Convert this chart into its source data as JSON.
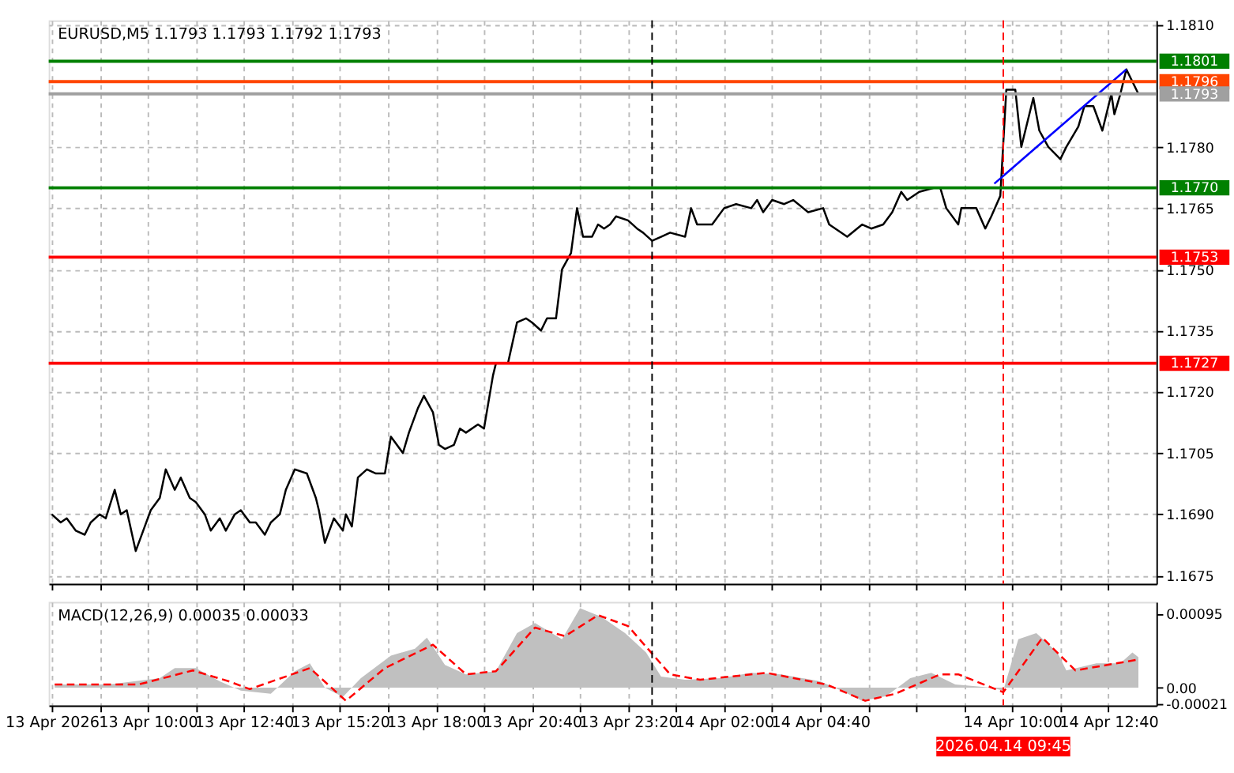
{
  "chart_data": [
    {
      "type": "line",
      "title": "EURUSD,M5  1.1793 1.1793 1.1792 1.1793",
      "tick_labels": "y",
      "grid": true,
      "xlim": [
        "2026-04-13T07:15",
        "2026-04-14T14:00"
      ],
      "xticks": [
        {
          "value": "2026-04-13T07:20",
          "label": null
        },
        {
          "value": "2026-04-13T08:40",
          "label": null
        },
        {
          "value": "2026-04-13T10:00",
          "label": null
        },
        {
          "value": "2026-04-13T11:20",
          "label": null
        },
        {
          "value": "2026-04-13T12:40",
          "label": null
        },
        {
          "value": "2026-04-13T14:00",
          "label": null
        },
        {
          "value": "2026-04-13T15:20",
          "label": null
        },
        {
          "value": "2026-04-13T16:40",
          "label": null
        },
        {
          "value": "2026-04-13T18:00",
          "label": null
        },
        {
          "value": "2026-04-13T19:20",
          "label": null
        },
        {
          "value": "2026-04-13T20:40",
          "label": null
        },
        {
          "value": "2026-04-13T22:00",
          "label": null
        },
        {
          "value": "2026-04-13T23:20",
          "label": null
        },
        {
          "value": "2026-04-14T00:40",
          "label": null
        },
        {
          "value": "2026-04-14T02:00",
          "label": null
        },
        {
          "value": "2026-04-14T03:20",
          "label": null
        },
        {
          "value": "2026-04-14T04:40",
          "label": null
        },
        {
          "value": "2026-04-14T06:00",
          "label": null
        },
        {
          "value": "2026-04-14T07:20",
          "label": null
        },
        {
          "value": "2026-04-14T08:40",
          "label": null
        },
        {
          "value": "2026-04-14T10:00",
          "label": null
        },
        {
          "value": "2026-04-14T11:20",
          "label": null
        },
        {
          "value": "2026-04-14T12:40",
          "label": null
        }
      ],
      "ylim": [
        1.1673,
        1.1811
      ],
      "yticks": [
        {
          "value": 1.181,
          "label": "1.1810"
        },
        {
          "value": 1.178,
          "label": "1.1780"
        },
        {
          "value": 1.1765,
          "label": "1.1765"
        },
        {
          "value": 1.175,
          "label": "1.1750"
        },
        {
          "value": 1.1735,
          "label": "1.1735"
        },
        {
          "value": 1.172,
          "label": "1.1720"
        },
        {
          "value": 1.1705,
          "label": "1.1705"
        },
        {
          "value": 1.169,
          "label": "1.1690"
        },
        {
          "value": 1.1675,
          "label": "1.1675"
        }
      ],
      "series": [
        {
          "color": "#000000",
          "x": [
            "2026-04-13T07:20",
            "2026-04-13T07:35",
            "2026-04-13T07:45",
            "2026-04-13T08:00",
            "2026-04-13T08:15",
            "2026-04-13T08:25",
            "2026-04-13T08:40",
            "2026-04-13T08:50",
            "2026-04-13T09:05",
            "2026-04-13T09:15",
            "2026-04-13T09:25",
            "2026-04-13T09:40",
            "2026-04-13T09:55",
            "2026-04-13T10:05",
            "2026-04-13T10:20",
            "2026-04-13T10:30",
            "2026-04-13T10:45",
            "2026-04-13T10:55",
            "2026-04-13T11:10",
            "2026-04-13T11:20",
            "2026-04-13T11:35",
            "2026-04-13T11:45",
            "2026-04-13T12:00",
            "2026-04-13T12:10",
            "2026-04-13T12:25",
            "2026-04-13T12:35",
            "2026-04-13T12:50",
            "2026-04-13T13:00",
            "2026-04-13T13:15",
            "2026-04-13T13:25",
            "2026-04-13T13:40",
            "2026-04-13T13:50",
            "2026-04-13T14:05",
            "2026-04-13T14:25",
            "2026-04-13T14:40",
            "2026-04-13T14:45",
            "2026-04-13T14:55",
            "2026-04-13T15:10",
            "2026-04-13T15:25",
            "2026-04-13T15:30",
            "2026-04-13T15:40",
            "2026-04-13T15:50",
            "2026-04-13T16:05",
            "2026-04-13T16:20",
            "2026-04-13T16:35",
            "2026-04-13T16:45",
            "2026-04-13T17:05",
            "2026-04-13T17:15",
            "2026-04-13T17:30",
            "2026-04-13T17:40",
            "2026-04-13T17:55",
            "2026-04-13T18:05",
            "2026-04-13T18:15",
            "2026-04-13T18:30",
            "2026-04-13T18:40",
            "2026-04-13T18:50",
            "2026-04-13T19:10",
            "2026-04-13T19:20",
            "2026-04-13T19:35",
            "2026-04-13T19:40",
            "2026-04-13T20:00",
            "2026-04-13T20:15",
            "2026-04-13T20:30",
            "2026-04-13T20:40",
            "2026-04-13T20:55",
            "2026-04-13T21:05",
            "2026-04-13T21:20",
            "2026-04-13T21:30",
            "2026-04-13T21:45",
            "2026-04-13T21:55",
            "2026-04-13T22:05",
            "2026-04-13T22:20",
            "2026-04-13T22:30",
            "2026-04-13T22:40",
            "2026-04-13T22:50",
            "2026-04-13T23:00",
            "2026-04-13T23:20",
            "2026-04-13T23:35",
            "2026-04-13T23:45",
            "2026-04-14T00:00",
            "2026-04-14T00:15",
            "2026-04-14T00:30",
            "2026-04-14T00:55",
            "2026-04-14T01:05",
            "2026-04-14T01:15",
            "2026-04-14T01:40",
            "2026-04-14T02:00",
            "2026-04-14T02:20",
            "2026-04-14T02:45",
            "2026-04-14T02:55",
            "2026-04-14T03:05",
            "2026-04-14T03:20",
            "2026-04-14T03:40",
            "2026-04-14T03:55",
            "2026-04-14T04:20",
            "2026-04-14T04:45",
            "2026-04-14T04:55",
            "2026-04-14T05:25",
            "2026-04-14T05:50",
            "2026-04-14T06:05",
            "2026-04-14T06:25",
            "2026-04-14T06:40",
            "2026-04-14T06:55",
            "2026-04-14T07:05",
            "2026-04-14T07:25",
            "2026-04-14T07:50",
            "2026-04-14T08:00",
            "2026-04-14T08:10",
            "2026-04-14T08:30",
            "2026-04-14T08:35",
            "2026-04-14T09:00",
            "2026-04-14T09:15",
            "2026-04-14T09:25",
            "2026-04-14T09:40",
            "2026-04-14T09:50",
            "2026-04-14T10:05",
            "2026-04-14T10:15",
            "2026-04-14T10:35",
            "2026-04-14T10:45",
            "2026-04-14T11:00",
            "2026-04-14T11:20",
            "2026-04-14T11:30",
            "2026-04-14T11:50",
            "2026-04-14T12:00",
            "2026-04-14T12:15",
            "2026-04-14T12:30",
            "2026-04-14T12:45",
            "2026-04-14T12:50",
            "2026-04-14T13:00",
            "2026-04-14T13:10",
            "2026-04-14T13:20",
            "2026-04-14T13:30"
          ],
          "values": [
            1.169,
            1.1688,
            1.1689,
            1.1686,
            1.1685,
            1.1688,
            1.169,
            1.1689,
            1.1696,
            1.169,
            1.1691,
            1.1681,
            1.1687,
            1.1691,
            1.1694,
            1.1701,
            1.1696,
            1.1699,
            1.1694,
            1.1693,
            1.169,
            1.1686,
            1.1689,
            1.1686,
            1.169,
            1.1691,
            1.1688,
            1.1688,
            1.1685,
            1.1688,
            1.169,
            1.1696,
            1.1701,
            1.17,
            1.1694,
            1.1691,
            1.1683,
            1.1689,
            1.1686,
            1.169,
            1.1687,
            1.1699,
            1.1701,
            1.17,
            1.17,
            1.1709,
            1.1705,
            1.171,
            1.1716,
            1.1719,
            1.1715,
            1.1707,
            1.1706,
            1.1707,
            1.1711,
            1.171,
            1.1712,
            1.1711,
            1.1724,
            1.1727,
            1.1727,
            1.1737,
            1.1738,
            1.1737,
            1.1735,
            1.1738,
            1.1738,
            1.175,
            1.1754,
            1.1765,
            1.1758,
            1.1758,
            1.1761,
            1.176,
            1.1761,
            1.1763,
            1.1762,
            1.176,
            1.1759,
            1.1757,
            1.1758,
            1.1759,
            1.1758,
            1.1765,
            1.1761,
            1.1761,
            1.1765,
            1.1766,
            1.1765,
            1.1767,
            1.1764,
            1.1767,
            1.1766,
            1.1767,
            1.1764,
            1.1765,
            1.1761,
            1.1758,
            1.1761,
            1.176,
            1.1761,
            1.1764,
            1.1769,
            1.1767,
            1.1769,
            1.177,
            1.177,
            1.1765,
            1.1761,
            1.1765,
            1.1765,
            1.176,
            1.1763,
            1.1768,
            1.1794,
            1.1794,
            1.178,
            1.1792,
            1.1784,
            1.178,
            1.1777,
            1.178,
            1.1785,
            1.179,
            1.179,
            1.1784,
            1.1793,
            1.1788,
            1.1793,
            1.1799,
            1.1796,
            1.1793
          ]
        },
        {
          "color": "#0000ff",
          "x": [
            "2026-04-14T09:30",
            "2026-04-14T13:10"
          ],
          "values": [
            1.1771,
            1.1799
          ]
        }
      ],
      "ref_lines": [
        {
          "axis": "y",
          "value": 1.1801,
          "label": "1.1801",
          "color": "#008000"
        },
        {
          "axis": "y",
          "value": 1.1796,
          "label": "1.1796",
          "color": "#ff4500"
        },
        {
          "axis": "y",
          "value": 1.1793,
          "label": "1.1793",
          "color": "#a0a0a0"
        },
        {
          "axis": "y",
          "value": 1.177,
          "label": "1.1770",
          "color": "#008000"
        },
        {
          "axis": "y",
          "value": 1.1753,
          "label": "1.1753",
          "color": "#ff0000"
        },
        {
          "axis": "y",
          "value": 1.1727,
          "label": "1.1727",
          "color": "#ff0000"
        },
        {
          "axis": "x",
          "value": "2026-04-14T00:00",
          "color": "#000000",
          "line_style": "dashed"
        },
        {
          "axis": "x",
          "value": "2026-04-14T09:45",
          "color": "#ff0000",
          "line_style": "dashed"
        }
      ]
    },
    {
      "type": "area",
      "annotations": [
        "MACD(12,26,9) 0.00035 0.00033"
      ],
      "grid": "x",
      "xlim": [
        "2026-04-13T07:15",
        "2026-04-14T14:00"
      ],
      "xticks": [
        {
          "value": "2026-04-13T07:20",
          "label": "13 Apr 2026"
        },
        {
          "value": "2026-04-13T08:40",
          "label": null
        },
        {
          "value": "2026-04-13T10:00",
          "label": "13 Apr 10:00"
        },
        {
          "value": "2026-04-13T11:20",
          "label": null
        },
        {
          "value": "2026-04-13T12:40",
          "label": "13 Apr 12:40"
        },
        {
          "value": "2026-04-13T14:00",
          "label": null
        },
        {
          "value": "2026-04-13T15:20",
          "label": "13 Apr 15:20"
        },
        {
          "value": "2026-04-13T16:40",
          "label": null
        },
        {
          "value": "2026-04-13T18:00",
          "label": "13 Apr 18:00"
        },
        {
          "value": "2026-04-13T19:20",
          "label": null
        },
        {
          "value": "2026-04-13T20:40",
          "label": "13 Apr 20:40"
        },
        {
          "value": "2026-04-13T22:00",
          "label": null
        },
        {
          "value": "2026-04-13T23:20",
          "label": "13 Apr 23:20"
        },
        {
          "value": "2026-04-14T00:40",
          "label": null
        },
        {
          "value": "2026-04-14T02:00",
          "label": "14 Apr 02:00"
        },
        {
          "value": "2026-04-14T03:20",
          "label": null
        },
        {
          "value": "2026-04-14T04:40",
          "label": "14 Apr 04:40"
        },
        {
          "value": "2026-04-14T06:00",
          "label": null
        },
        {
          "value": "2026-04-14T07:20",
          "label": null
        },
        {
          "value": "2026-04-14T08:40",
          "label": null
        },
        {
          "value": "2026-04-14T10:00",
          "label": "14 Apr 10:00"
        },
        {
          "value": "2026-04-14T11:20",
          "label": null
        },
        {
          "value": "2026-04-14T12:40",
          "label": "14 Apr 12:40"
        }
      ],
      "ylim": [
        -0.00023,
        0.0011
      ],
      "yticks": [
        {
          "value": 0.00095,
          "label": "0.00095"
        },
        {
          "value": 0,
          "label": "0.00"
        },
        {
          "value": -0.00021,
          "label": "-0.00021"
        }
      ],
      "series": [
        {
          "color": "#c0c0c0",
          "x": [
            "2026-04-13T07:25",
            "2026-04-13T08:55",
            "2026-04-13T10:20",
            "2026-04-13T10:45",
            "2026-04-13T11:20",
            "2026-04-13T12:00",
            "2026-04-13T12:35",
            "2026-04-13T13:25",
            "2026-04-13T14:05",
            "2026-04-13T14:30",
            "2026-04-13T14:55",
            "2026-04-13T15:25",
            "2026-04-13T15:55",
            "2026-04-13T16:45",
            "2026-04-13T17:25",
            "2026-04-13T17:45",
            "2026-04-13T18:15",
            "2026-04-13T18:50",
            "2026-04-13T19:40",
            "2026-04-13T20:15",
            "2026-04-13T20:45",
            "2026-04-13T21:30",
            "2026-04-13T22:00",
            "2026-04-13T22:35",
            "2026-04-13T23:15",
            "2026-04-13T23:50",
            "2026-04-14T00:15",
            "2026-04-14T00:55",
            "2026-04-14T01:55",
            "2026-04-14T02:45",
            "2026-04-14T03:35",
            "2026-04-14T04:40",
            "2026-04-14T05:15",
            "2026-04-14T05:50",
            "2026-04-14T06:30",
            "2026-04-14T07:10",
            "2026-04-14T07:45",
            "2026-04-14T08:25",
            "2026-04-14T09:25",
            "2026-04-14T09:45",
            "2026-04-14T10:10",
            "2026-04-14T10:40",
            "2026-04-14T11:15",
            "2026-04-14T11:30",
            "2026-04-14T12:20",
            "2026-04-14T13:00",
            "2026-04-14T13:20",
            "2026-04-14T13:30"
          ],
          "values": [
            4e-05,
            4e-05,
            0.00012,
            0.00025,
            0.00025,
            8e-05,
            -4e-05,
            -8e-05,
            0.00021,
            0.00031,
            0.0,
            -0.00012,
            0.00012,
            0.00041,
            0.0005,
            0.00064,
            0.00029,
            0.00017,
            0.00021,
            0.0007,
            0.00083,
            0.00062,
            0.00102,
            0.00091,
            0.0007,
            0.00045,
            0.00014,
            0.0001,
            0.00012,
            0.00019,
            0.00017,
            8e-05,
            -4e-05,
            -0.00017,
            -0.00011,
            0.00012,
            0.00019,
            4e-05,
            0.0,
            -4e-05,
            0.00062,
            0.0007,
            0.00045,
            0.00022,
            0.00031,
            0.00031,
            0.00045,
            0.00039
          ]
        },
        {
          "type": "line",
          "color": "#ff0000",
          "line_style": "dashed",
          "x": [
            "2026-04-13T07:25",
            "2026-04-13T09:45",
            "2026-04-13T11:15",
            "2026-04-13T12:15",
            "2026-04-13T12:50",
            "2026-04-13T14:30",
            "2026-04-13T15:30",
            "2026-04-13T16:35",
            "2026-04-13T17:55",
            "2026-04-13T18:50",
            "2026-04-13T19:40",
            "2026-04-13T20:45",
            "2026-04-13T21:35",
            "2026-04-13T22:30",
            "2026-04-13T23:20",
            "2026-04-14T00:30",
            "2026-04-14T01:20",
            "2026-04-14T03:10",
            "2026-04-14T04:50",
            "2026-04-14T05:55",
            "2026-04-14T06:45",
            "2026-04-14T08:00",
            "2026-04-14T08:30",
            "2026-04-14T09:45",
            "2026-04-14T10:50",
            "2026-04-14T11:45",
            "2026-04-14T13:30"
          ],
          "values": [
            4e-05,
            4e-05,
            0.00022,
            8e-05,
            -2e-05,
            0.00025,
            -0.00017,
            0.00025,
            0.00055,
            0.00017,
            0.00021,
            0.00077,
            0.00066,
            0.00093,
            0.00079,
            0.00017,
            0.0001,
            0.00019,
            4e-05,
            -0.00017,
            -8e-05,
            0.00017,
            0.00017,
            -6e-05,
            0.00064,
            0.00022,
            0.00036
          ]
        }
      ],
      "ref_lines": [
        {
          "axis": "x",
          "value": "2026-04-14T00:00",
          "color": "#000000",
          "line_style": "dashed"
        },
        {
          "axis": "x",
          "value": "2026-04-14T09:45",
          "label": "2026.04.14 09:45",
          "color": "#ff0000",
          "line_style": "dashed"
        }
      ]
    }
  ]
}
